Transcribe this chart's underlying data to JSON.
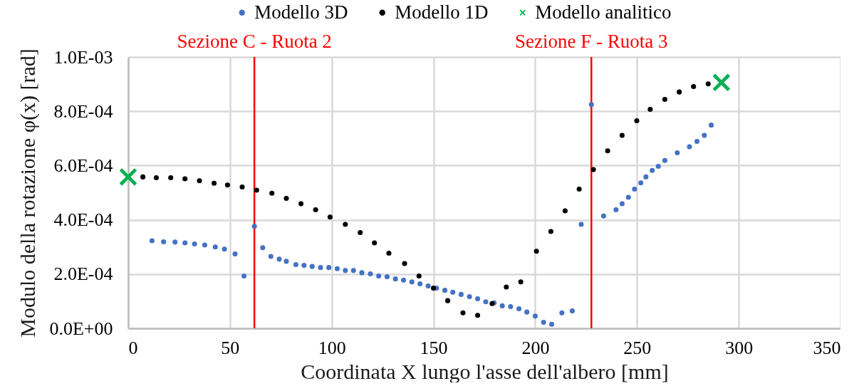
{
  "chart_data": {
    "type": "scatter",
    "xlabel": "Coordinata X lungo l'asse dell'albero [mm]",
    "ylabel": "Modulo della rotazione φ(x) [rad]",
    "xlim": [
      0,
      350
    ],
    "ylim": [
      0,
      0.001
    ],
    "xticks": [
      0,
      50,
      100,
      150,
      200,
      250,
      300,
      350
    ],
    "yticks": [
      {
        "value": 0,
        "label": "0.0E+00"
      },
      {
        "value": 0.0002,
        "label": "2.0E-04"
      },
      {
        "value": 0.0004,
        "label": "4.0E-04"
      },
      {
        "value": 0.0006,
        "label": "6.0E-04"
      },
      {
        "value": 0.0008,
        "label": "8.0E-04"
      },
      {
        "value": 0.001,
        "label": "1.0E-03"
      }
    ],
    "grid": true,
    "legend": "top",
    "series": [
      {
        "name": "Modello 3D",
        "color": "#4472c4",
        "marker": "circle",
        "x": [
          11.7,
          17.4,
          23.0,
          27.9,
          32.6,
          37.6,
          42.8,
          47.3,
          52.5,
          56.9,
          62.0,
          66.1,
          70.1,
          74.2,
          77.7,
          82.4,
          86.4,
          90.4,
          94.5,
          98.6,
          102.7,
          106.7,
          110.7,
          114.8,
          119.0,
          123.1,
          127.2,
          131.3,
          135.3,
          139.4,
          143.4,
          147.4,
          151.5,
          155.6,
          159.5,
          163.6,
          167.7,
          171.7,
          175.7,
          179.8,
          183.8,
          187.9,
          192.0,
          195.9,
          200.0,
          204.1,
          208.1,
          213.1,
          218.2,
          222.6,
          227.6,
          233.6,
          239.7,
          242.7,
          245.8,
          248.8,
          251.9,
          254.4,
          257.5,
          260.5,
          263.7,
          269.8,
          275.8,
          279.5,
          283.1,
          286.5
        ],
        "values": [
          0.000323,
          0.000319,
          0.000318,
          0.000315,
          0.000311,
          0.000307,
          0.0003,
          0.000292,
          0.000274,
          0.000193,
          0.000376,
          0.000297,
          0.000265,
          0.000255,
          0.000247,
          0.000235,
          0.000232,
          0.000228,
          0.000224,
          0.000224,
          0.00022,
          0.000213,
          0.000213,
          0.000205,
          0.000201,
          0.000193,
          0.00019,
          0.000182,
          0.000178,
          0.000171,
          0.000164,
          0.000156,
          0.000148,
          0.00014,
          0.000133,
          0.000125,
          0.000117,
          0.000109,
          9.8e-05,
          9.4e-05,
          8.3e-05,
          8e-05,
          7.2e-05,
          6e-05,
          4.5e-05,
          2.2e-05,
          1.5e-05,
          5.7e-05,
          6.4e-05,
          0.000383,
          0.000825,
          0.000414,
          0.000437,
          0.000459,
          0.000483,
          0.000513,
          0.000536,
          0.000558,
          0.000582,
          0.000597,
          0.000619,
          0.000647,
          0.000669,
          0.000689,
          0.000711,
          0.000749
        ]
      },
      {
        "name": "Modello 1D",
        "color": "#000000",
        "marker": "circle",
        "x": [
          7.2,
          13.8,
          20.9,
          27.9,
          35.0,
          42.2,
          48.8,
          56.0,
          63.1,
          70.6,
          77.7,
          84.9,
          92.1,
          99.2,
          106.7,
          114.0,
          121.0,
          128.1,
          135.8,
          142.9,
          150.0,
          157.0,
          164.5,
          171.7,
          178.8,
          185.8,
          192.9,
          200.6,
          207.7,
          214.7,
          221.6,
          228.6,
          235.6,
          242.7,
          249.9,
          256.5,
          263.7,
          270.8,
          277.8,
          285.0
        ],
        "values": [
          0.000558,
          0.000555,
          0.000555,
          0.000551,
          0.000544,
          0.000535,
          0.000528,
          0.000521,
          0.000509,
          0.000498,
          0.000479,
          0.000459,
          0.000437,
          0.00041,
          0.000383,
          0.000353,
          0.000315,
          0.000277,
          0.000239,
          0.000193,
          0.000148,
          0.000102,
          5.7e-05,
          4.8e-05,
          9.1e-05,
          0.000152,
          0.000171,
          0.000284,
          0.000357,
          0.000433,
          0.000513,
          0.000585,
          0.000654,
          0.000711,
          0.000765,
          0.000807,
          0.000844,
          0.000871,
          0.000891,
          0.000901
        ]
      },
      {
        "name": "Modello analitico",
        "color": "#00b050",
        "marker": "cross",
        "x": [
          0,
          291.5
        ],
        "values": [
          0.000558,
          0.000906
        ]
      }
    ],
    "ref_lines": [
      {
        "axis": "x",
        "value": 62.0,
        "label": "Sezione C - Ruota 2",
        "color": "#ff0000"
      },
      {
        "axis": "x",
        "value": 227.6,
        "label": "Sezione F - Ruota 3",
        "color": "#ff0000"
      }
    ]
  }
}
